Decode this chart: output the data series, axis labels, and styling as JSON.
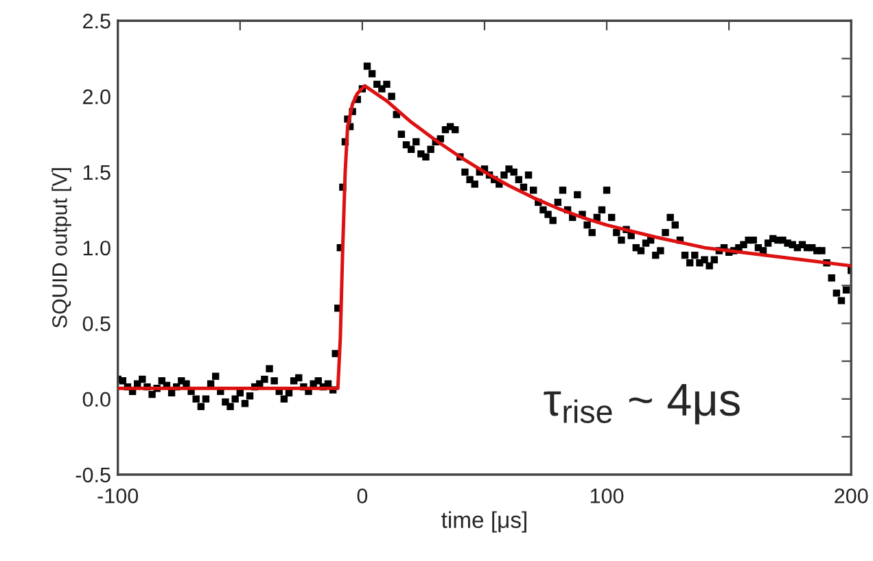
{
  "chart_data": {
    "type": "scatter",
    "xlabel": "time [μs]",
    "ylabel": "SQUID output [V]",
    "xlim": [
      -100,
      200
    ],
    "ylim": [
      -0.5,
      2.5
    ],
    "xticks": [
      -100,
      {
        "value": -50,
        "label": null
      },
      {
        "value": 0,
        "label": "0"
      },
      {
        "value": 50,
        "label": null
      },
      100,
      {
        "value": 150,
        "label": null
      },
      200
    ],
    "yticks": [
      {
        "value": -0.5,
        "label": "-0.5"
      },
      {
        "value": -0.25,
        "label": null
      },
      {
        "value": 0,
        "label": "0.0"
      },
      {
        "value": 0.25,
        "label": null
      },
      0.5,
      {
        "value": 0.75,
        "label": null
      },
      {
        "value": 1,
        "label": "1.0"
      },
      {
        "value": 1.25,
        "label": null
      },
      1.5,
      {
        "value": 1.75,
        "label": null
      },
      {
        "value": 2,
        "label": "2.0"
      },
      {
        "value": 2.25,
        "label": null
      },
      2.5
    ],
    "grid": false,
    "legend": false,
    "annotations": [
      "τ$_{rise}$ ~ 4μs"
    ],
    "series": [
      {
        "color": "#000000",
        "marker": "square",
        "x": [
          -100,
          -98,
          -96,
          -94,
          -92,
          -90,
          -88,
          -86,
          -84,
          -82,
          -80,
          -78,
          -76,
          -74,
          -72,
          -70,
          -68,
          -66,
          -64,
          -62,
          -60,
          -58,
          -56,
          -54,
          -52,
          -50,
          -48,
          -46,
          -44,
          -42,
          -40,
          -38,
          -36,
          -34,
          -32,
          -30,
          -28,
          -26,
          -24,
          -22,
          -20,
          -18,
          -16,
          -14,
          -12,
          -11,
          -10,
          -9,
          -8,
          -7,
          -6,
          -5,
          -4,
          -2,
          0,
          2,
          4,
          6,
          8,
          10,
          12,
          14,
          16,
          18,
          20,
          22,
          24,
          26,
          28,
          30,
          32,
          34,
          36,
          38,
          40,
          42,
          44,
          46,
          48,
          50,
          52,
          54,
          56,
          58,
          60,
          62,
          64,
          66,
          68,
          70,
          72,
          74,
          76,
          78,
          80,
          82,
          84,
          86,
          88,
          90,
          92,
          94,
          96,
          98,
          100,
          102,
          104,
          106,
          108,
          110,
          112,
          114,
          116,
          118,
          120,
          122,
          124,
          126,
          128,
          130,
          132,
          134,
          136,
          138,
          140,
          142,
          144,
          146,
          148,
          150,
          152,
          154,
          156,
          158,
          160,
          162,
          164,
          166,
          168,
          170,
          172,
          174,
          176,
          178,
          180,
          182,
          184,
          186,
          188,
          190,
          192,
          194,
          196,
          198,
          200
        ],
        "values": [
          0.13,
          0.12,
          0.08,
          0.05,
          0.1,
          0.13,
          0.08,
          0.03,
          0.07,
          0.12,
          0.09,
          0.04,
          0.08,
          0.12,
          0.1,
          0.05,
          0.0,
          -0.05,
          0.0,
          0.1,
          0.15,
          0.05,
          -0.02,
          -0.05,
          0.0,
          0.04,
          -0.03,
          0.02,
          0.08,
          0.1,
          0.13,
          0.2,
          0.12,
          0.05,
          0.0,
          0.04,
          0.12,
          0.14,
          0.08,
          0.05,
          0.1,
          0.12,
          0.08,
          0.1,
          0.06,
          0.3,
          0.6,
          1.0,
          1.4,
          1.7,
          1.85,
          1.8,
          1.9,
          1.98,
          2.05,
          2.2,
          2.15,
          2.08,
          2.05,
          2.08,
          2.0,
          1.88,
          1.75,
          1.68,
          1.65,
          1.7,
          1.62,
          1.6,
          1.65,
          1.7,
          1.72,
          1.78,
          1.8,
          1.78,
          1.6,
          1.5,
          1.45,
          1.42,
          1.5,
          1.52,
          1.48,
          1.45,
          1.42,
          1.48,
          1.52,
          1.5,
          1.45,
          1.4,
          1.48,
          1.38,
          1.3,
          1.25,
          1.22,
          1.18,
          1.3,
          1.38,
          1.25,
          1.2,
          1.35,
          1.22,
          1.15,
          1.1,
          1.2,
          1.25,
          1.38,
          1.2,
          1.1,
          1.05,
          1.12,
          1.08,
          1.0,
          0.98,
          1.03,
          1.05,
          0.95,
          0.98,
          1.1,
          1.2,
          1.15,
          1.05,
          0.95,
          0.9,
          0.95,
          0.9,
          0.92,
          0.88,
          0.92,
          0.98,
          1.0,
          0.97,
          0.98,
          1.0,
          1.02,
          1.05,
          1.05,
          1.0,
          0.98,
          1.03,
          1.06,
          1.05,
          1.05,
          1.03,
          1.02,
          1.0,
          1.02,
          1.0,
          1.0,
          0.98,
          0.98,
          0.9,
          0.8,
          0.7,
          0.65,
          0.72,
          0.85
        ]
      },
      {
        "type": "line",
        "color": "#dd1111",
        "line_style": "solid",
        "x": [
          -100,
          -10,
          -9,
          -8,
          -7,
          -6,
          -4,
          -2,
          1,
          10,
          20,
          30,
          40,
          50,
          60,
          70,
          80,
          90,
          100,
          120,
          140,
          160,
          180,
          200
        ],
        "values": [
          0.07,
          0.07,
          0.4,
          1.0,
          1.5,
          1.8,
          1.95,
          2.02,
          2.07,
          1.97,
          1.83,
          1.71,
          1.6,
          1.5,
          1.41,
          1.33,
          1.26,
          1.2,
          1.15,
          1.07,
          1.0,
          0.96,
          0.92,
          0.88
        ]
      }
    ]
  }
}
